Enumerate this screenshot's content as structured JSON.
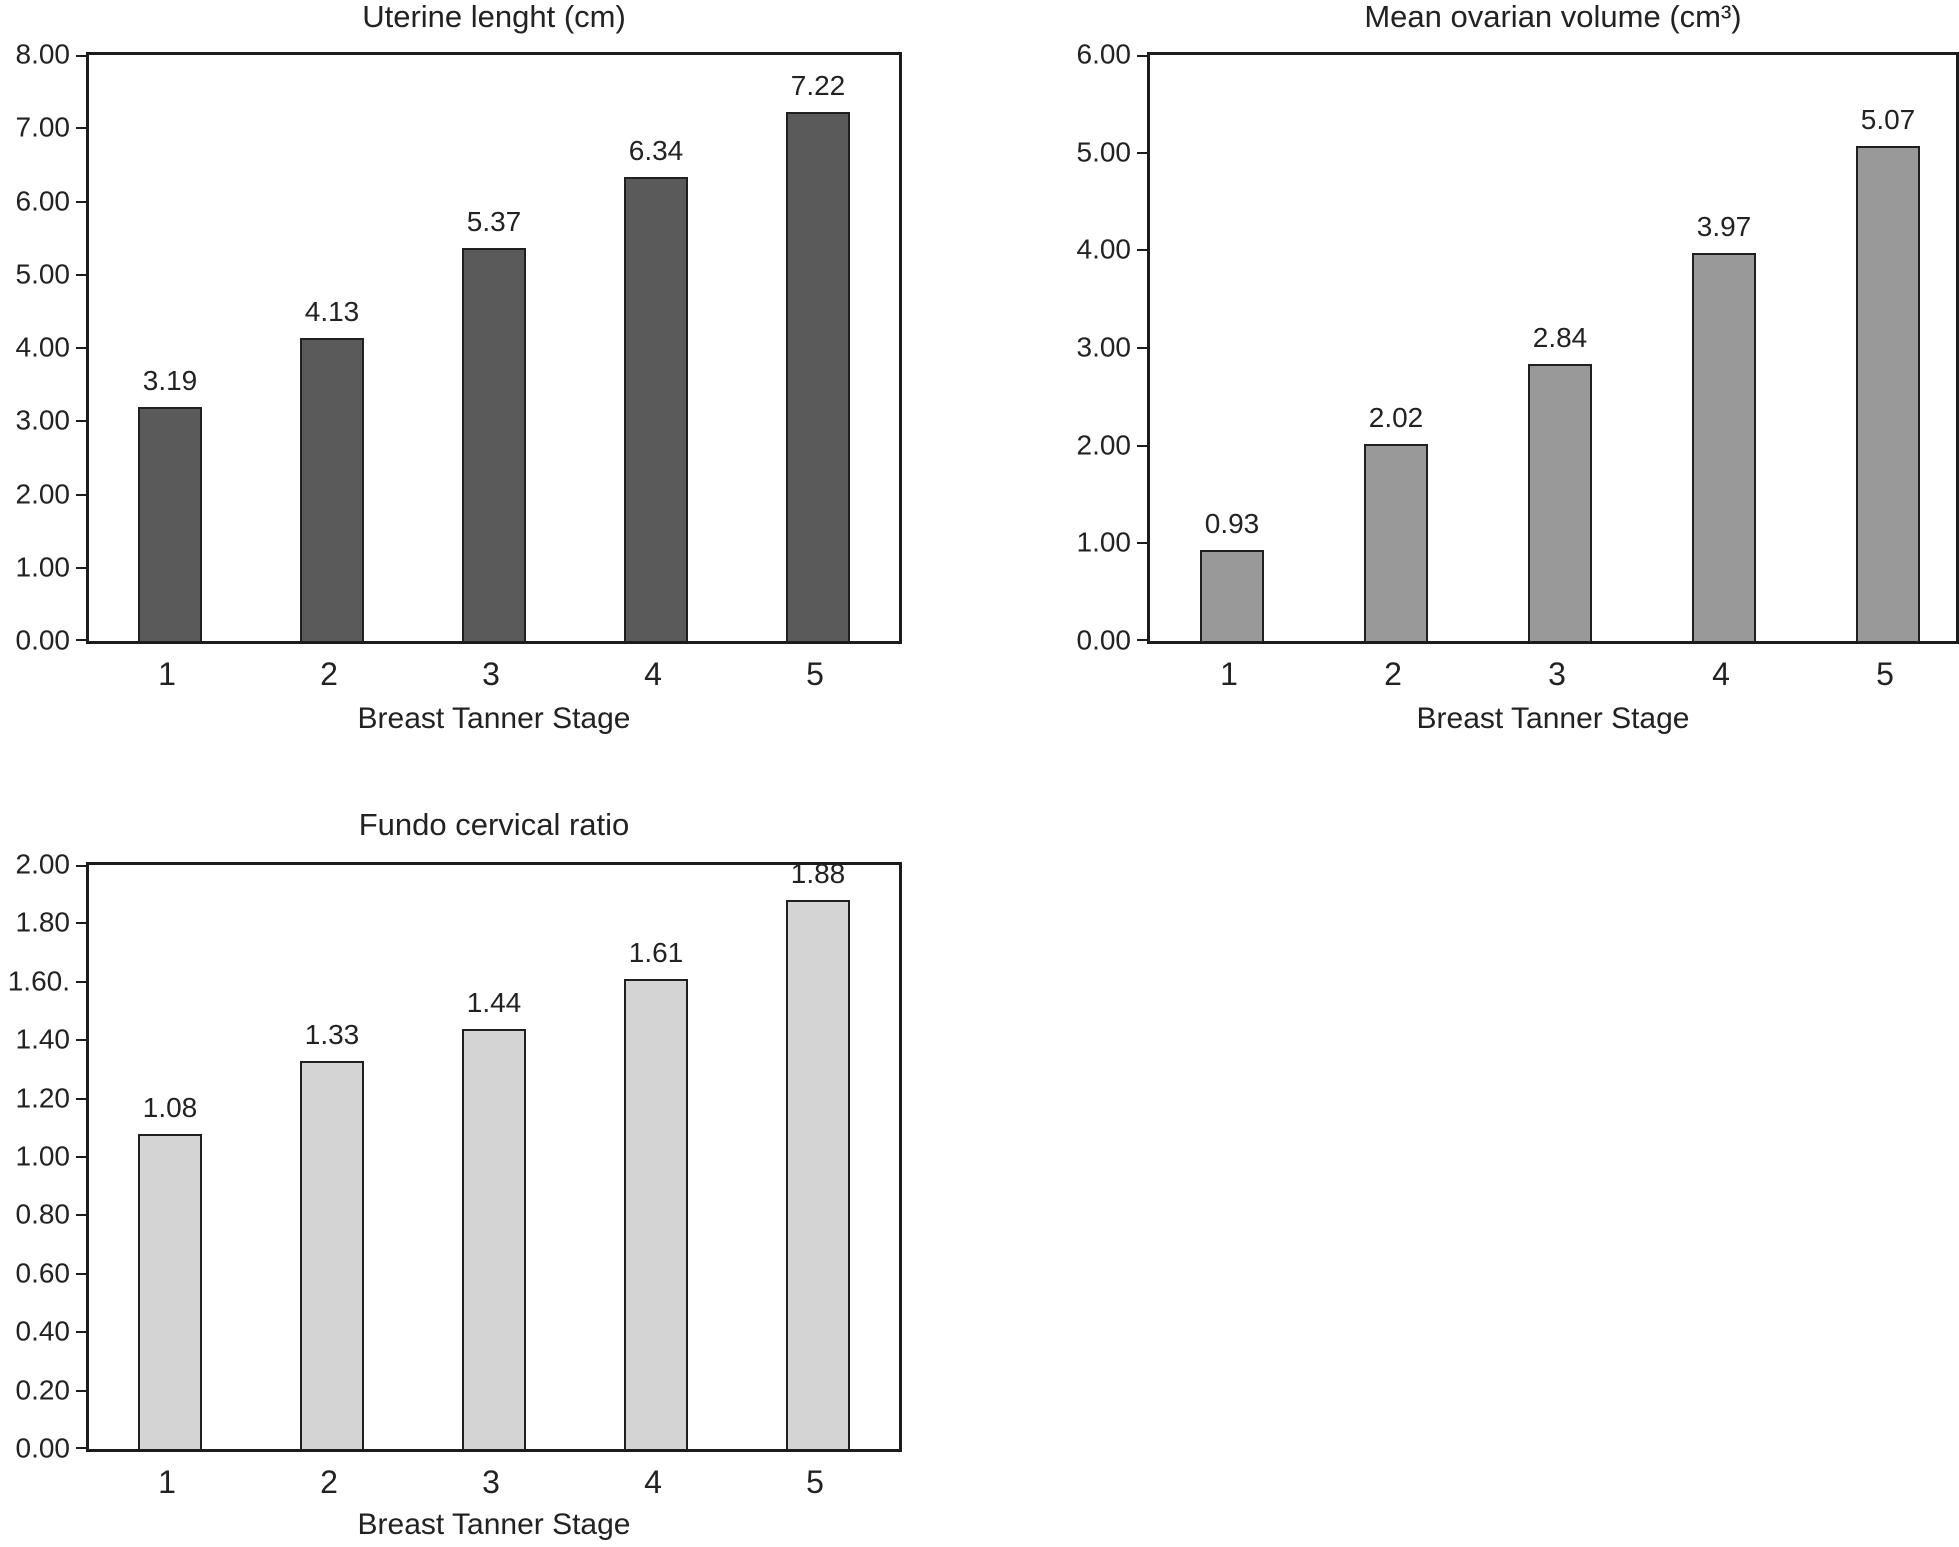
{
  "style": {
    "background": "#ffffff",
    "text_color": "#242122",
    "axis_color": "#1c1c1c",
    "bar_border_color": "#202020"
  },
  "chart_data": [
    {
      "type": "bar",
      "title": "Uterine lenght (cm)",
      "xlabel": "Breast Tanner Stage",
      "ylabel": "",
      "categories": [
        "1",
        "2",
        "3",
        "4",
        "5"
      ],
      "values": [
        3.19,
        4.13,
        5.37,
        6.34,
        7.22
      ],
      "data_labels": [
        "3.19",
        "4.13",
        "5.37",
        "6.34",
        "7.22"
      ],
      "y_tick_labels": [
        "8.00",
        "7.00",
        "6.00",
        "5.00",
        "4.00",
        "3.00",
        "2.00",
        "1.00",
        "0.00"
      ],
      "ylim": [
        0,
        8
      ],
      "grid": false,
      "legend": false,
      "bar_color": "#5a5a5a"
    },
    {
      "type": "bar",
      "title": "Mean ovarian volume (cm³)",
      "xlabel": "Breast Tanner Stage",
      "ylabel": "",
      "categories": [
        "1",
        "2",
        "3",
        "4",
        "5"
      ],
      "values": [
        0.93,
        2.02,
        2.84,
        3.97,
        5.07
      ],
      "data_labels": [
        "0.93",
        "2.02",
        "2.84",
        "3.97",
        "5.07"
      ],
      "y_tick_labels": [
        "6.00",
        "5.00",
        "4.00",
        "3.00",
        "2.00",
        "1.00",
        "0.00"
      ],
      "ylim": [
        0,
        6
      ],
      "grid": false,
      "legend": false,
      "bar_color": "#999999"
    },
    {
      "type": "bar",
      "title": "Fundo cervical ratio",
      "xlabel": "Breast Tanner Stage",
      "ylabel": "",
      "categories": [
        "1",
        "2",
        "3",
        "4",
        "5"
      ],
      "values": [
        1.08,
        1.33,
        1.44,
        1.61,
        1.88
      ],
      "data_labels": [
        "1.08",
        "1.33",
        "1.44",
        "1.61",
        "1.88"
      ],
      "y_tick_labels": [
        "2.00",
        "1.80",
        "1.60.",
        "1.40",
        "1.20",
        "1.00",
        "0.80",
        "0.60",
        "0.40",
        "0.20",
        "0.00"
      ],
      "ylim": [
        0,
        2
      ],
      "grid": false,
      "legend": false,
      "bar_color": "#d4d4d4"
    }
  ]
}
